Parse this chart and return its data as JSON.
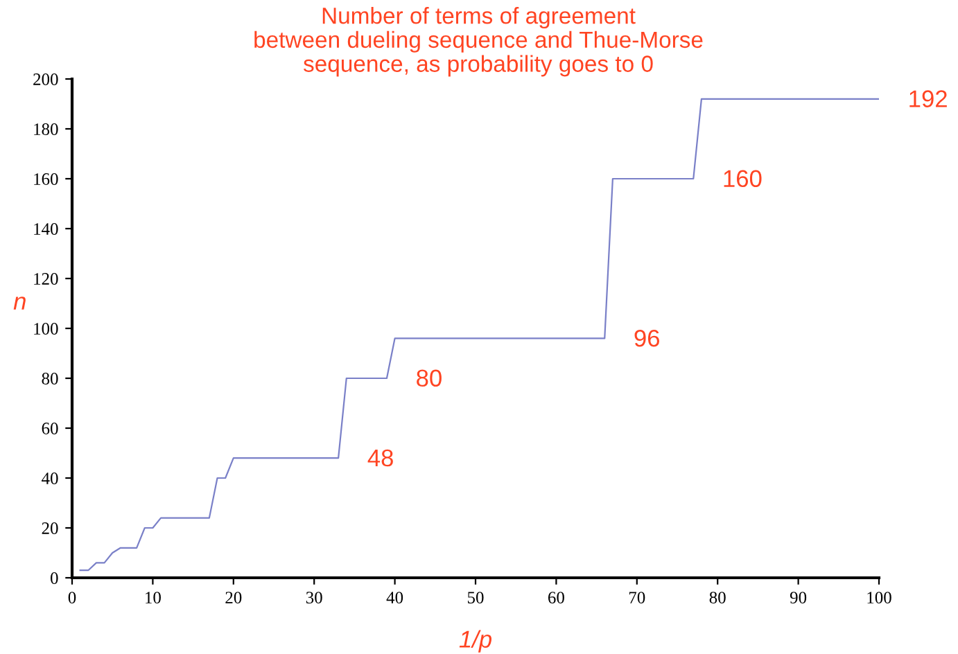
{
  "chart_data": {
    "type": "line",
    "title": "Number of terms of agreement\nbetween dueling sequence and Thue-Morse\nsequence, as probability goes to 0",
    "xlabel": "1/p",
    "ylabel": "n",
    "series": [
      {
        "color": "#7a80c8",
        "x": [
          1,
          2,
          3,
          4,
          5,
          6,
          7,
          8,
          9,
          10,
          11,
          17,
          18,
          19,
          20,
          33,
          34,
          39,
          40,
          66,
          67,
          77,
          78,
          100
        ],
        "values": [
          3,
          3,
          6,
          6,
          10,
          12,
          12,
          12,
          20,
          20,
          24,
          24,
          40,
          40,
          48,
          48,
          80,
          80,
          96,
          96,
          160,
          160,
          192,
          192
        ]
      }
    ],
    "annotations": [
      {
        "text": "48",
        "x": 33,
        "y": 48
      },
      {
        "text": "80",
        "x": 39,
        "y": 80
      },
      {
        "text": "96",
        "x": 66,
        "y": 96
      },
      {
        "text": "160",
        "x": 77,
        "y": 160
      },
      {
        "text": "192",
        "x": 100,
        "y": 192
      }
    ],
    "xlim": [
      0,
      100
    ],
    "ylim": [
      0,
      200
    ],
    "xticks": [
      0,
      10,
      20,
      30,
      40,
      50,
      60,
      70,
      80,
      90,
      100
    ],
    "yticks": [
      0,
      20,
      40,
      60,
      80,
      100,
      120,
      140,
      160,
      180,
      200
    ],
    "grid": false,
    "legend": false,
    "marker": "none",
    "line_style": "solid"
  }
}
